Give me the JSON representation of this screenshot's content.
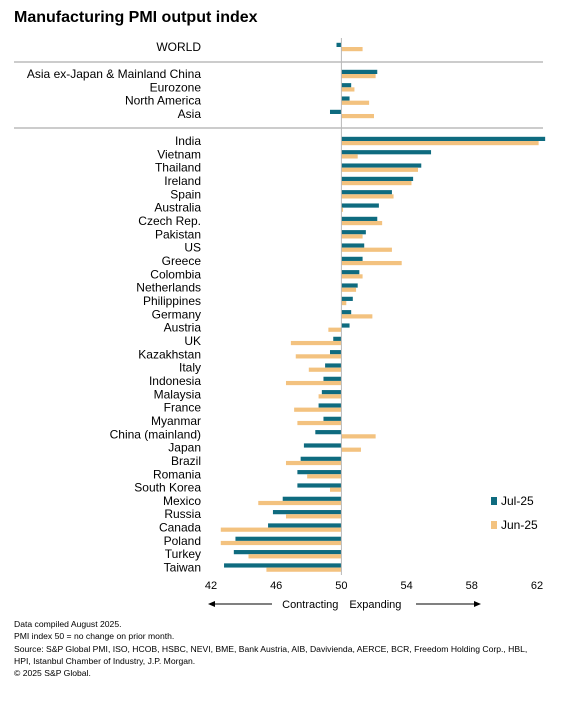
{
  "chart_data": {
    "type": "bar",
    "title": "Manufacturing PMI output index",
    "orientation": "horizontal",
    "baseline": 50,
    "xlim": [
      42,
      63
    ],
    "xticks": [
      "42",
      "46",
      "50",
      "54",
      "58",
      "62"
    ],
    "grid": false,
    "legend_position": "right",
    "series": [
      {
        "name": "Jul-25",
        "color": "#0e6b7f"
      },
      {
        "name": "Jun-25",
        "color": "#f3c27f"
      }
    ],
    "groups": [
      {
        "rows": [
          {
            "label": "WORLD",
            "jul": 49.7,
            "jun": 51.3
          }
        ]
      },
      {
        "rows": [
          {
            "label": "Asia ex-Japan & Mainland China",
            "jul": 52.2,
            "jun": 52.1
          },
          {
            "label": "Eurozone",
            "jul": 50.6,
            "jun": 50.8
          },
          {
            "label": "North America",
            "jul": 50.5,
            "jun": 51.7
          },
          {
            "label": "Asia",
            "jul": 49.3,
            "jun": 52.0
          }
        ]
      },
      {
        "rows": [
          {
            "label": "India",
            "jul": 62.5,
            "jun": 62.1
          },
          {
            "label": "Vietnam",
            "jul": 55.5,
            "jun": 51.0
          },
          {
            "label": "Thailand",
            "jul": 54.9,
            "jun": 54.7
          },
          {
            "label": "Ireland",
            "jul": 54.4,
            "jun": 54.3
          },
          {
            "label": "Spain",
            "jul": 53.1,
            "jun": 53.2
          },
          {
            "label": "Australia",
            "jul": 52.3,
            "jun": 50.1
          },
          {
            "label": "Czech Rep.",
            "jul": 52.2,
            "jun": 52.5
          },
          {
            "label": "Pakistan",
            "jul": 51.5,
            "jun": 51.3
          },
          {
            "label": "US",
            "jul": 51.4,
            "jun": 53.1
          },
          {
            "label": "Greece",
            "jul": 51.3,
            "jun": 53.7
          },
          {
            "label": "Colombia",
            "jul": 51.1,
            "jun": 51.3
          },
          {
            "label": "Netherlands",
            "jul": 51.0,
            "jun": 50.9
          },
          {
            "label": "Philippines",
            "jul": 50.7,
            "jun": 50.3
          },
          {
            "label": "Germany",
            "jul": 50.6,
            "jun": 51.9
          },
          {
            "label": "Austria",
            "jul": 50.5,
            "jun": 49.2
          },
          {
            "label": "UK",
            "jul": 49.5,
            "jun": 46.9
          },
          {
            "label": "Kazakhstan",
            "jul": 49.3,
            "jun": 47.2
          },
          {
            "label": "Italy",
            "jul": 49.0,
            "jun": 48.0
          },
          {
            "label": "Indonesia",
            "jul": 48.9,
            "jun": 46.6
          },
          {
            "label": "Malaysia",
            "jul": 48.8,
            "jun": 48.6
          },
          {
            "label": "France",
            "jul": 48.6,
            "jun": 47.1
          },
          {
            "label": "Myanmar",
            "jul": 48.9,
            "jun": 47.3
          },
          {
            "label": "China (mainland)",
            "jul": 48.4,
            "jun": 52.1
          },
          {
            "label": "Japan",
            "jul": 47.7,
            "jun": 51.2
          },
          {
            "label": "Brazil",
            "jul": 47.5,
            "jun": 46.6
          },
          {
            "label": "Romania",
            "jul": 47.3,
            "jun": 47.9
          },
          {
            "label": "South Korea",
            "jul": 47.3,
            "jun": 49.3
          },
          {
            "label": "Mexico",
            "jul": 46.4,
            "jun": 44.9
          },
          {
            "label": "Russia",
            "jul": 45.8,
            "jun": 46.6
          },
          {
            "label": "Canada",
            "jul": 45.5,
            "jun": 42.6
          },
          {
            "label": "Poland",
            "jul": 43.5,
            "jun": 42.6
          },
          {
            "label": "Turkey",
            "jul": 43.4,
            "jun": 44.3
          },
          {
            "label": "Taiwan",
            "jul": 42.8,
            "jun": 45.4
          }
        ]
      }
    ],
    "direction_labels": {
      "left": "Contracting",
      "right": "Expanding"
    },
    "notes": [
      "Data compiled August 2025.",
      "PMI index 50 = no change on prior month.",
      "Source: S&P Global PMI, ISO, HCOB, HSBC, NEVI, BME, Bank Austria, AIB, Davivienda, AERCE, BCR, Freedom Holding Corp., HBL,",
      "HPI, Istanbul Chamber of Industry, J.P. Morgan.",
      "© 2025 S&P Global."
    ]
  }
}
